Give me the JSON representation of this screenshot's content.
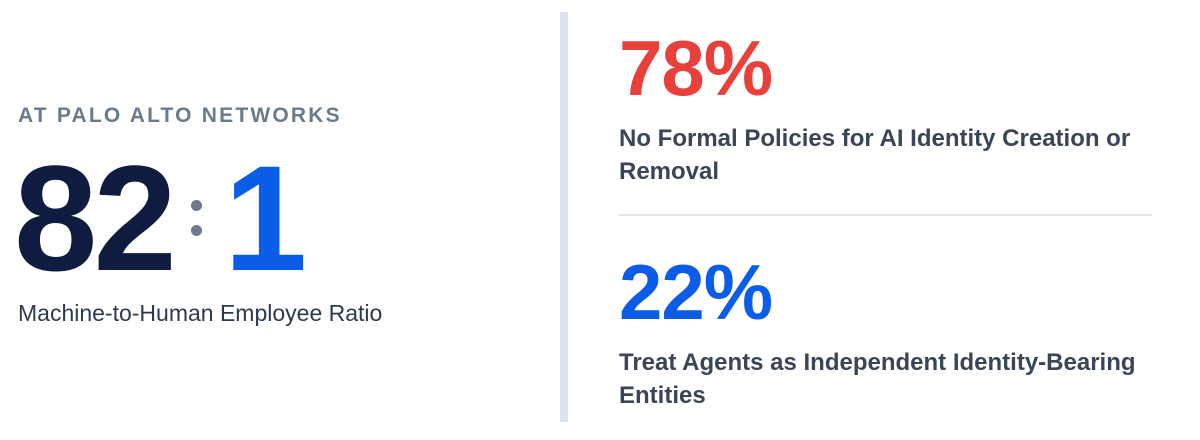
{
  "left": {
    "eyebrow": "AT PALO ALTO NETWORKS",
    "ratio": {
      "left": "82",
      "right": "1"
    },
    "caption": "Machine-to-Human Employee Ratio"
  },
  "stats": [
    {
      "value": "78%",
      "label": "No Formal Policies for AI Identity Creation or Removal",
      "color": "#e8413b"
    },
    {
      "value": "22%",
      "label": "Treat Agents as Independent Identity-Bearing Entities",
      "color": "#0b5ce6"
    }
  ],
  "colors": {
    "navy": "#0f1c3f",
    "blue": "#0b5ce6",
    "red": "#e8413b",
    "slate": "#6b7a8c"
  }
}
